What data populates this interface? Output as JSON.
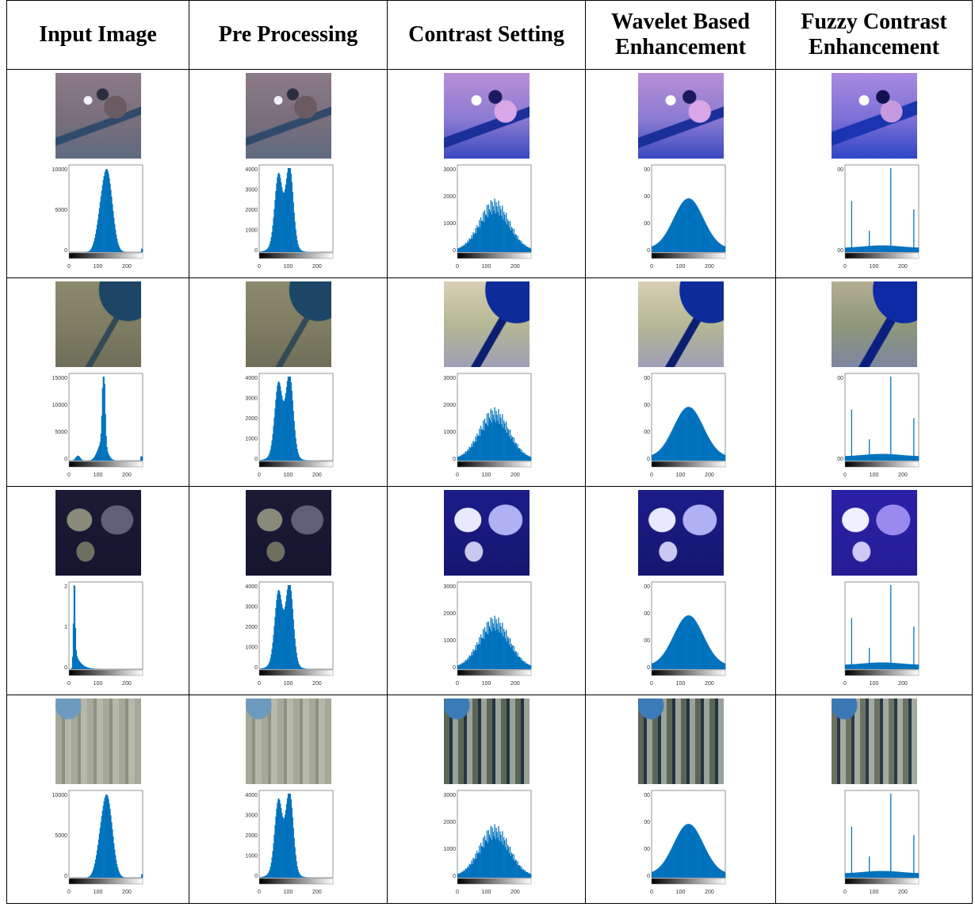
{
  "table": {
    "headers": [
      "Input Image",
      "Pre Processing",
      "Contrast Setting",
      "Wavelet Based\nEnhancement",
      "Fuzzy Contrast\nEnhancement"
    ]
  },
  "histograms": {
    "bar_color": "#0072bd",
    "x_ticks": [
      "0",
      "100",
      "200"
    ],
    "rows": [
      {
        "input_y_ticks": [
          "10000",
          "5000",
          "0"
        ],
        "pre_y_ticks": [
          "4000",
          "3000",
          "2000",
          "1000",
          "0"
        ],
        "contrast_y_ticks": [
          "3000",
          "2000",
          "1000",
          "0"
        ],
        "wavelet_y_ticks": [
          "00",
          "00",
          "00",
          "0"
        ],
        "fuzzy_y_ticks": [
          "00",
          "00"
        ]
      },
      {
        "input_y_ticks": [
          "15000",
          "10000",
          "5000",
          "0"
        ],
        "pre_y_ticks": [
          "4000",
          "3000",
          "2000",
          "1000",
          "0"
        ],
        "contrast_y_ticks": [
          "3000",
          "2000",
          "1000",
          "0"
        ],
        "wavelet_y_ticks": [
          "00",
          "00",
          "00",
          "0"
        ],
        "fuzzy_y_ticks": [
          "00",
          "00"
        ]
      },
      {
        "input_y_ticks": [
          "2",
          "1",
          "0"
        ],
        "pre_y_ticks": [
          "4000",
          "3000",
          "2000",
          "1000",
          "0"
        ],
        "contrast_y_ticks": [
          "3000",
          "2000",
          "1000",
          "0"
        ],
        "wavelet_y_ticks": [
          "00",
          "00",
          "00",
          "0"
        ],
        "fuzzy_y_ticks": [
          "",
          ""
        ]
      },
      {
        "input_y_ticks": [
          "10000",
          "5000",
          "0"
        ],
        "pre_y_ticks": [
          "4000",
          "3000",
          "2000",
          "1000",
          "0"
        ],
        "contrast_y_ticks": [
          "3000",
          "2000",
          "1000",
          "0"
        ],
        "wavelet_y_ticks": [
          "00",
          "00",
          "00",
          "0"
        ],
        "fuzzy_y_ticks": [
          "",
          ""
        ]
      }
    ]
  }
}
